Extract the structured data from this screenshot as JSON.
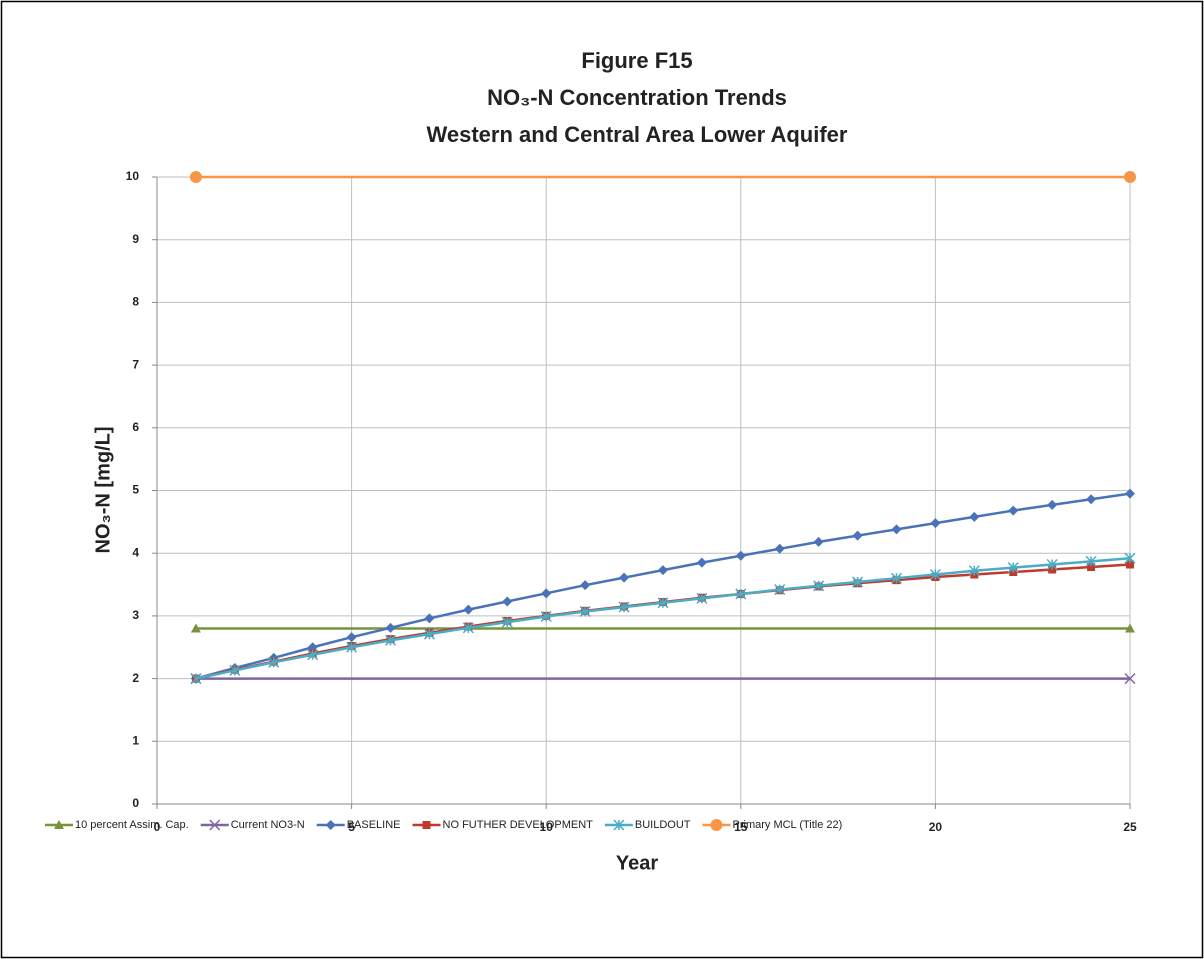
{
  "chart_data": {
    "type": "line",
    "title": [
      "Figure F15",
      "NO₃-N Concentration Trends",
      "Western and Central Area Lower Aquifer"
    ],
    "xlabel": "Year",
    "ylabel": "NO₃-N  [mg/L]",
    "xlim": [
      0,
      25
    ],
    "xticks": [
      0,
      5,
      10,
      15,
      20,
      25
    ],
    "ylim": [
      0,
      10
    ],
    "yticks": [
      0,
      1,
      2,
      3,
      4,
      5,
      6,
      7,
      8,
      9,
      10
    ],
    "grid": true,
    "legend": "bottom",
    "series": [
      {
        "name": "10 percent Assim. Cap.",
        "color": "#77933c",
        "marker": "triangle",
        "x": [
          1,
          25
        ],
        "values": [
          2.8,
          2.8
        ]
      },
      {
        "name": "Current NO3-N",
        "color": "#8064a2",
        "marker": "x",
        "x": [
          1,
          25
        ],
        "values": [
          2,
          2
        ]
      },
      {
        "name": "BASELINE",
        "color": "#4a72b8",
        "marker": "diamond",
        "x": [
          1,
          2,
          3,
          4,
          5,
          6,
          7,
          8,
          9,
          10,
          11,
          12,
          13,
          14,
          15,
          16,
          17,
          18,
          19,
          20,
          21,
          22,
          23,
          24,
          25
        ],
        "values": [
          2.0,
          2.17,
          2.33,
          2.5,
          2.66,
          2.81,
          2.96,
          3.1,
          3.23,
          3.36,
          3.49,
          3.61,
          3.73,
          3.85,
          3.96,
          4.07,
          4.18,
          4.28,
          4.38,
          4.48,
          4.58,
          4.68,
          4.77,
          4.86,
          4.95
        ]
      },
      {
        "name": "NO FUTHER DEVELOPMENT",
        "color": "#c0392b",
        "marker": "square",
        "x": [
          1,
          2,
          3,
          4,
          5,
          6,
          7,
          8,
          9,
          10,
          11,
          12,
          13,
          14,
          15,
          16,
          17,
          18,
          19,
          20,
          21,
          22,
          23,
          24,
          25
        ],
        "values": [
          2.0,
          2.14,
          2.27,
          2.4,
          2.52,
          2.63,
          2.73,
          2.83,
          2.92,
          3.0,
          3.08,
          3.15,
          3.22,
          3.29,
          3.35,
          3.41,
          3.47,
          3.52,
          3.57,
          3.62,
          3.66,
          3.7,
          3.74,
          3.78,
          3.82
        ]
      },
      {
        "name": "BUILDOUT",
        "color": "#4bacc6",
        "marker": "star",
        "x": [
          1,
          2,
          3,
          4,
          5,
          6,
          7,
          8,
          9,
          10,
          11,
          12,
          13,
          14,
          15,
          16,
          17,
          18,
          19,
          20,
          21,
          22,
          23,
          24,
          25
        ],
        "values": [
          2.0,
          2.13,
          2.26,
          2.38,
          2.5,
          2.61,
          2.71,
          2.81,
          2.9,
          2.99,
          3.07,
          3.14,
          3.21,
          3.28,
          3.35,
          3.42,
          3.48,
          3.54,
          3.6,
          3.66,
          3.72,
          3.77,
          3.82,
          3.87,
          3.92
        ]
      },
      {
        "name": "Primary MCL (Title 22)",
        "color": "#f79646",
        "marker": "circle",
        "x": [
          1,
          25
        ],
        "values": [
          10,
          10
        ]
      }
    ]
  }
}
